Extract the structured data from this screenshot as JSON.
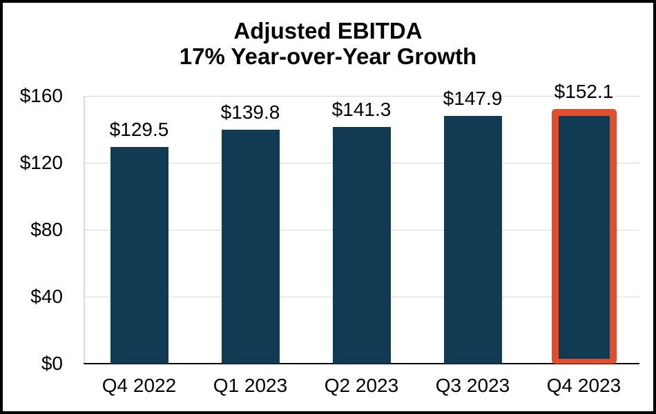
{
  "chart_data": {
    "type": "bar",
    "title": "Adjusted EBITDA",
    "subtitle": "17% Year-over-Year Growth",
    "categories": [
      "Q4 2022",
      "Q1 2023",
      "Q2 2023",
      "Q3 2023",
      "Q4 2023"
    ],
    "values": [
      129.5,
      139.8,
      141.3,
      147.9,
      152.1
    ],
    "data_labels": [
      "$129.5",
      "$139.8",
      "$141.3",
      "$147.9",
      "$152.1"
    ],
    "highlight_index": 4,
    "ylim": [
      0,
      160
    ],
    "yticks": [
      {
        "value": 0,
        "label": "$0"
      },
      {
        "value": 40,
        "label": "$40"
      },
      {
        "value": 80,
        "label": "$80"
      },
      {
        "value": 120,
        "label": "$120"
      },
      {
        "value": 160,
        "label": "$160"
      }
    ],
    "grid": true,
    "legend": "none",
    "colors": {
      "bar": "#113A53",
      "highlight_border": "#E04E2B",
      "gridline": "#D9D9D9",
      "axis_left_line": "#D9D9D9",
      "axis_bottom_line": "#000000",
      "text": "#000000",
      "background": "#FFFFFF",
      "frame_border": "#000000"
    }
  }
}
